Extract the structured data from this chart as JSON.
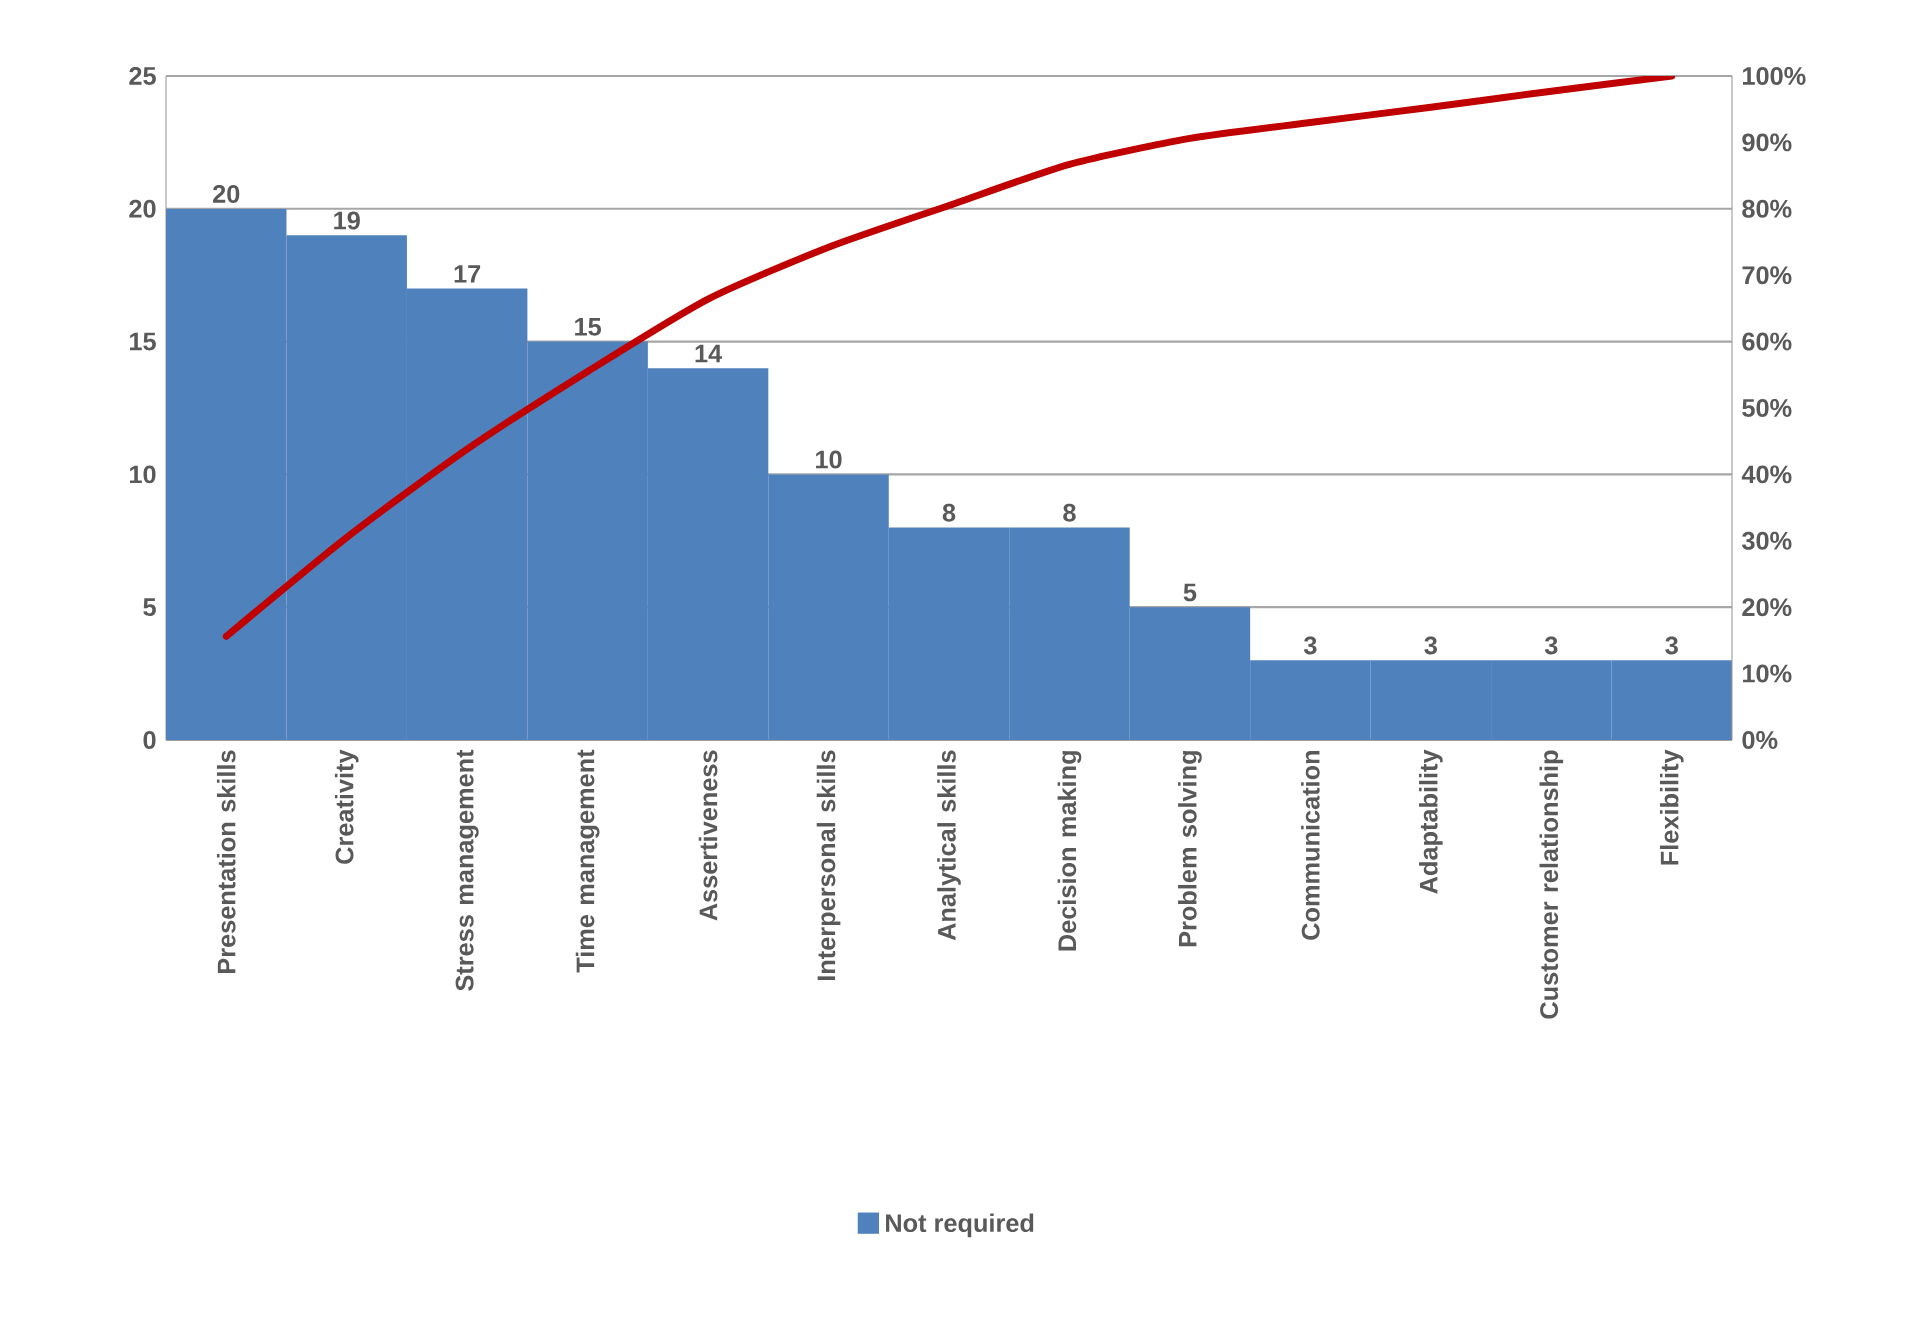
{
  "chart_data": {
    "type": "bar",
    "categories": [
      "Presentation skills",
      "Creativity",
      "Stress management",
      "Time management",
      "Assertiveness",
      "Interpersonal skills",
      "Analytical skills",
      "Decision making",
      "Problem solving",
      "Communication",
      "Adaptability",
      "Customer relationship",
      "Flexibility"
    ],
    "series": [
      {
        "name": "Not required",
        "color": "#4f81bd",
        "values": [
          20,
          19,
          17,
          15,
          14,
          10,
          8,
          8,
          5,
          3,
          3,
          3,
          3
        ],
        "value_labels": [
          "20",
          "19",
          "17",
          "15",
          "14",
          "10",
          "8",
          "8",
          "5",
          "3",
          "3",
          "3",
          "3"
        ]
      },
      {
        "type": "line",
        "axis": "y2",
        "color": "#c00000",
        "values": [
          15.6,
          30.5,
          43.8,
          55.5,
          66.4,
          74.2,
          80.5,
          86.7,
          90.6,
          93.0,
          95.3,
          97.7,
          100
        ]
      }
    ],
    "ylim": [
      0,
      25
    ],
    "yticks": [
      0,
      5,
      10,
      15,
      20,
      25
    ],
    "y2lim": [
      0,
      100
    ],
    "y2ticks": [
      {
        "value": 0,
        "label": "0%"
      },
      {
        "value": 10,
        "label": "10%"
      },
      {
        "value": 20,
        "label": "20%"
      },
      {
        "value": 30,
        "label": "30%"
      },
      {
        "value": 40,
        "label": "40%"
      },
      {
        "value": 50,
        "label": "50%"
      },
      {
        "value": 60,
        "label": "60%"
      },
      {
        "value": 70,
        "label": "70%"
      },
      {
        "value": 80,
        "label": "80%"
      },
      {
        "value": 90,
        "label": "90%"
      },
      {
        "value": 100,
        "label": "100%"
      }
    ],
    "grid": "y",
    "legend": "bottom",
    "marker": "none",
    "line_style": "solid"
  }
}
